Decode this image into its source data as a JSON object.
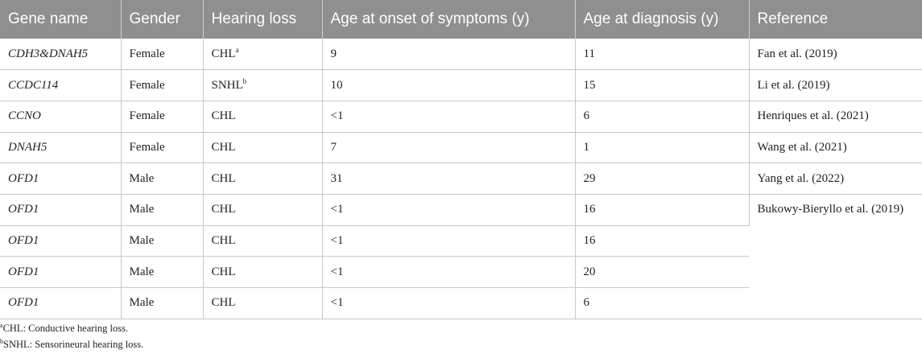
{
  "table": {
    "headers": [
      "Gene name",
      "Gender",
      "Hearing loss",
      "Age at onset of symptoms (y)",
      "Age at diagnosis (y)",
      "Reference"
    ],
    "rows": [
      {
        "gene": "CDH3&DNAH5",
        "gender": "Female",
        "hearing_loss": "CHL",
        "hearing_sup": "a",
        "onset": "9",
        "diagnosis": "11",
        "reference": "Fan et al. (2019)"
      },
      {
        "gene": "CCDC114",
        "gender": "Female",
        "hearing_loss": "SNHL",
        "hearing_sup": "b",
        "onset": "10",
        "diagnosis": "15",
        "reference": "Li et al. (2019)"
      },
      {
        "gene": "CCNO",
        "gender": "Female",
        "hearing_loss": "CHL",
        "onset": "<1",
        "diagnosis": "6",
        "reference": "Henriques et al. (2021)"
      },
      {
        "gene": "DNAH5",
        "gender": "Female",
        "hearing_loss": "CHL",
        "onset": "7",
        "diagnosis": "1",
        "reference": "Wang et al. (2021)"
      },
      {
        "gene": "OFD1",
        "gender": "Male",
        "hearing_loss": "CHL",
        "onset": "31",
        "diagnosis": "29",
        "reference": "Yang et al. (2022)"
      },
      {
        "gene": "OFD1",
        "gender": "Male",
        "hearing_loss": "CHL",
        "onset": "<1",
        "diagnosis": "16",
        "reference": "Bukowy-Bieryllo et al. (2019)"
      },
      {
        "gene": "OFD1",
        "gender": "Male",
        "hearing_loss": "CHL",
        "onset": "<1",
        "diagnosis": "16"
      },
      {
        "gene": "OFD1",
        "gender": "Male",
        "hearing_loss": "CHL",
        "onset": "<1",
        "diagnosis": "20"
      },
      {
        "gene": "OFD1",
        "gender": "Male",
        "hearing_loss": "CHL",
        "onset": "<1",
        "diagnosis": "6"
      }
    ]
  },
  "footnotes": [
    {
      "marker": "a",
      "text": "CHL: Conductive hearing loss."
    },
    {
      "marker": "b",
      "text": "SNHL: Sensorineural hearing loss."
    }
  ]
}
